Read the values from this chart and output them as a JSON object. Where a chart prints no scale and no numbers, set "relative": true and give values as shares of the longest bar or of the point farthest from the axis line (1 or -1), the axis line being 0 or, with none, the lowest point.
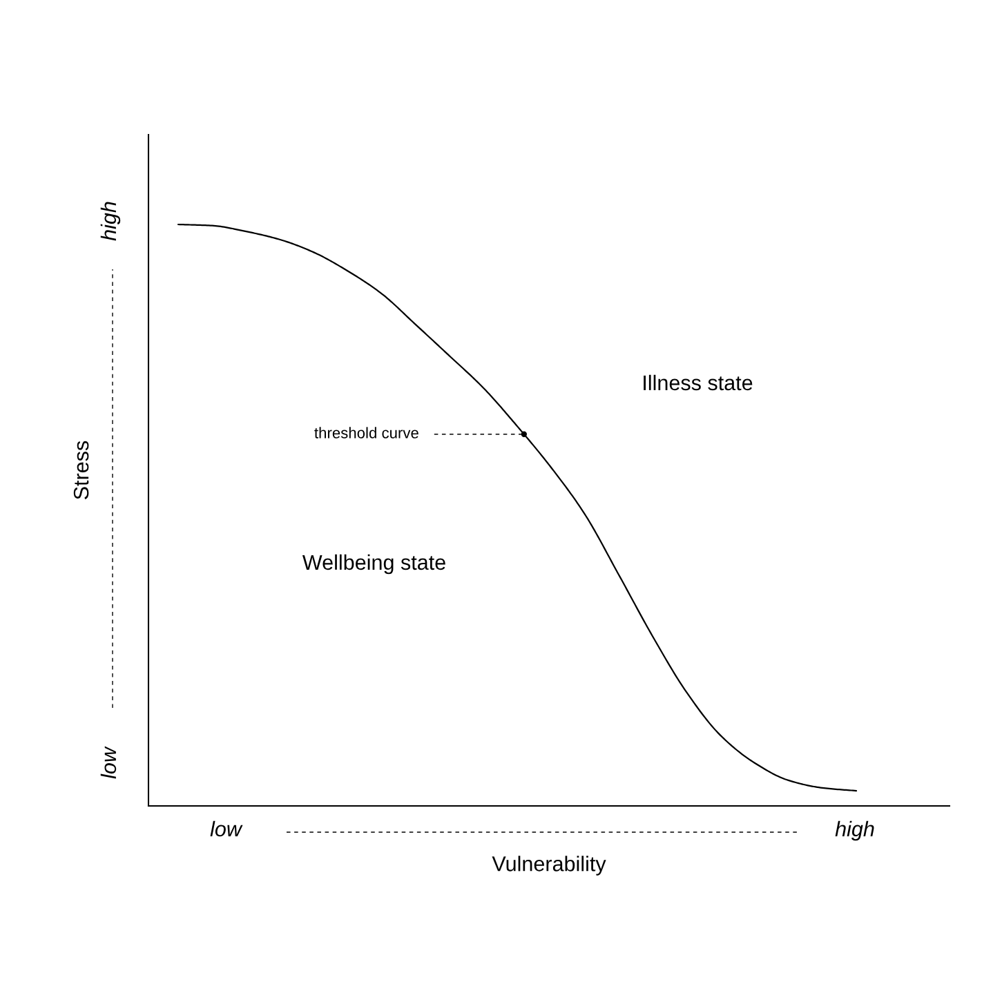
{
  "chart_data": {
    "type": "line",
    "relative": true,
    "xlabel": "Vulnerability",
    "ylabel": "Stress",
    "categories": [
      null,
      null,
      null,
      null,
      null,
      null,
      null,
      null,
      null,
      null,
      null,
      null,
      null,
      null,
      null,
      null,
      null,
      null,
      null,
      null,
      null
    ],
    "series": [
      {
        "color": "#000000",
        "values": [
          1.0,
          0.998,
          0.988,
          0.974,
          0.952,
          0.92,
          0.881,
          0.828,
          0.774,
          0.719,
          0.653,
          0.582,
          0.501,
          0.397,
          0.291,
          0.195,
          0.121,
          0.074,
          0.044,
          0.031,
          0.026
        ]
      }
    ],
    "annotations": [
      "low",
      "high",
      "low",
      "high",
      "threshold curve",
      "Illness state",
      "Wellbeing state"
    ]
  }
}
